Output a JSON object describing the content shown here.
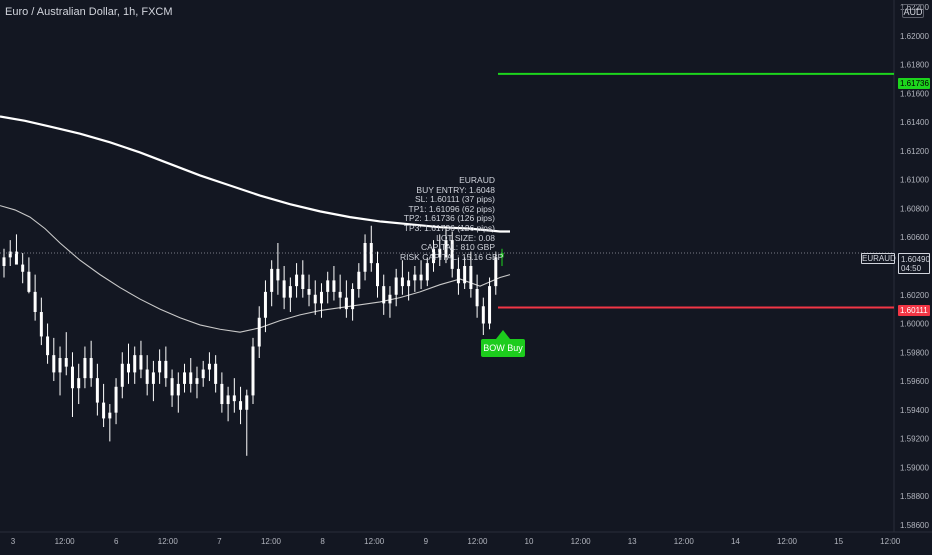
{
  "header": {
    "symbol_title": "Euro / Australian Dollar, 1h, FXCM",
    "currency_label": "AUD"
  },
  "price_axis": {
    "labels": [
      "1.62200",
      "1.62000",
      "1.61800",
      "1.61600",
      "1.61400",
      "1.61200",
      "1.61000",
      "1.60800",
      "1.60600",
      "1.60400",
      "1.60200",
      "1.60000",
      "1.59800",
      "1.59600",
      "1.59400",
      "1.59200",
      "1.59000",
      "1.58800",
      "1.58600"
    ],
    "tp_tag": "1.61736",
    "sl_tag": "1.60111",
    "last_price_tag": "1.60490",
    "countdown_tag": "04:50",
    "symbol_tag": "EURAUD"
  },
  "time_axis": {
    "labels": [
      "3",
      "12:00",
      "6",
      "12:00",
      "7",
      "12:00",
      "8",
      "12:00",
      "9",
      "12:00",
      "10",
      "12:00",
      "13",
      "12:00",
      "14",
      "12:00",
      "15",
      "12:00"
    ]
  },
  "signal": {
    "label": "BOW Buy"
  },
  "info_box": {
    "lines": [
      "EURAUD",
      "BUY ENTRY: 1.6048",
      "SL: 1.60111 (37 pips)",
      "TP1: 1.61096 (62 pips)",
      "TP2: 1.61736 (126 pips)",
      "TP3: 1.61736 (126 pips)",
      "LOT SIZE: 0.08",
      "CAPITAL: 810 GBP",
      "RISK CAPITAL: 15.16 GBP"
    ]
  },
  "colors": {
    "background": "#131722",
    "candle": "#ffffff",
    "tp_line": "#1dd41d",
    "sl_line": "#f23645",
    "signal": "#1dcc1d",
    "grid_text": "#b2b5be"
  },
  "chart_data": {
    "type": "candlestick",
    "symbol": "EURAUD",
    "interval": "1h",
    "ylim": [
      1.5855,
      1.6225
    ],
    "x_ticks": [
      "3",
      "12:00",
      "6",
      "12:00",
      "7",
      "12:00",
      "8",
      "12:00",
      "9",
      "12:00",
      "10",
      "12:00",
      "13",
      "12:00",
      "14",
      "12:00",
      "15",
      "12:00"
    ],
    "levels": {
      "take_profit": 1.61736,
      "stop_loss": 1.60111,
      "last_price": 1.6049
    },
    "candles": [
      [
        1.604,
        1.6052,
        1.6032,
        1.6046
      ],
      [
        1.6046,
        1.6058,
        1.604,
        1.605
      ],
      [
        1.605,
        1.6062,
        1.6044,
        1.6041
      ],
      [
        1.6041,
        1.6049,
        1.6028,
        1.6036
      ],
      [
        1.6036,
        1.6046,
        1.6021,
        1.6022
      ],
      [
        1.6022,
        1.6034,
        1.6002,
        1.6008
      ],
      [
        1.6008,
        1.6018,
        1.5985,
        1.5991
      ],
      [
        1.5991,
        1.6,
        1.5972,
        1.5978
      ],
      [
        1.5978,
        1.599,
        1.596,
        1.5966
      ],
      [
        1.5966,
        1.5984,
        1.595,
        1.5976
      ],
      [
        1.5976,
        1.5994,
        1.5964,
        1.597
      ],
      [
        1.597,
        1.598,
        1.5935,
        1.5955
      ],
      [
        1.5955,
        1.5972,
        1.5944,
        1.5962
      ],
      [
        1.5962,
        1.5984,
        1.5955,
        1.5976
      ],
      [
        1.5976,
        1.5988,
        1.5956,
        1.5962
      ],
      [
        1.5962,
        1.5972,
        1.5936,
        1.5945
      ],
      [
        1.5945,
        1.5958,
        1.5928,
        1.5934
      ],
      [
        1.5934,
        1.5944,
        1.5918,
        1.5938
      ],
      [
        1.5938,
        1.5962,
        1.593,
        1.5956
      ],
      [
        1.5956,
        1.598,
        1.5948,
        1.5972
      ],
      [
        1.5972,
        1.5986,
        1.5958,
        1.5966
      ],
      [
        1.5966,
        1.5984,
        1.5958,
        1.5978
      ],
      [
        1.5978,
        1.5988,
        1.5962,
        1.5968
      ],
      [
        1.5968,
        1.5978,
        1.595,
        1.5958
      ],
      [
        1.5958,
        1.5974,
        1.5946,
        1.5966
      ],
      [
        1.5966,
        1.5982,
        1.5958,
        1.5974
      ],
      [
        1.5974,
        1.5984,
        1.5956,
        1.5962
      ],
      [
        1.5962,
        1.5968,
        1.5942,
        1.595
      ],
      [
        1.595,
        1.5966,
        1.5938,
        1.5958
      ],
      [
        1.5958,
        1.5972,
        1.5952,
        1.5966
      ],
      [
        1.5966,
        1.5976,
        1.5952,
        1.5958
      ],
      [
        1.5958,
        1.597,
        1.5948,
        1.5962
      ],
      [
        1.5962,
        1.5974,
        1.5956,
        1.5968
      ],
      [
        1.5968,
        1.598,
        1.596,
        1.5972
      ],
      [
        1.5972,
        1.5978,
        1.5952,
        1.5958
      ],
      [
        1.5958,
        1.5966,
        1.5938,
        1.5944
      ],
      [
        1.5944,
        1.5956,
        1.5932,
        1.595
      ],
      [
        1.595,
        1.5962,
        1.5938,
        1.5946
      ],
      [
        1.5946,
        1.5956,
        1.593,
        1.594
      ],
      [
        1.594,
        1.5954,
        1.5908,
        1.595
      ],
      [
        1.595,
        1.599,
        1.5944,
        1.5984
      ],
      [
        1.5984,
        1.6012,
        1.5976,
        1.6004
      ],
      [
        1.6004,
        1.603,
        1.5994,
        1.6022
      ],
      [
        1.6022,
        1.6044,
        1.6012,
        1.6038
      ],
      [
        1.6038,
        1.6056,
        1.602,
        1.603
      ],
      [
        1.603,
        1.604,
        1.601,
        1.6018
      ],
      [
        1.6018,
        1.6032,
        1.6008,
        1.6026
      ],
      [
        1.6026,
        1.6042,
        1.6018,
        1.6034
      ],
      [
        1.6034,
        1.6044,
        1.6018,
        1.6024
      ],
      [
        1.6024,
        1.6034,
        1.6012,
        1.602
      ],
      [
        1.602,
        1.603,
        1.6006,
        1.6014
      ],
      [
        1.6014,
        1.6028,
        1.6004,
        1.6022
      ],
      [
        1.6022,
        1.6036,
        1.6014,
        1.603
      ],
      [
        1.603,
        1.604,
        1.6016,
        1.6022
      ],
      [
        1.6022,
        1.6034,
        1.601,
        1.6018
      ],
      [
        1.6018,
        1.603,
        1.6004,
        1.601
      ],
      [
        1.601,
        1.6028,
        1.6002,
        1.6024
      ],
      [
        1.6024,
        1.6042,
        1.6018,
        1.6036
      ],
      [
        1.6036,
        1.6062,
        1.603,
        1.6056
      ],
      [
        1.6056,
        1.6068,
        1.6036,
        1.6042
      ],
      [
        1.6042,
        1.605,
        1.6018,
        1.6026
      ],
      [
        1.6026,
        1.6034,
        1.6006,
        1.6014
      ],
      [
        1.6014,
        1.6026,
        1.6004,
        1.602
      ],
      [
        1.602,
        1.6038,
        1.6012,
        1.6032
      ],
      [
        1.6032,
        1.6044,
        1.602,
        1.6026
      ],
      [
        1.6026,
        1.6036,
        1.6016,
        1.603
      ],
      [
        1.603,
        1.604,
        1.6022,
        1.6034
      ],
      [
        1.6034,
        1.6044,
        1.6024,
        1.603
      ],
      [
        1.603,
        1.6046,
        1.6026,
        1.6042
      ],
      [
        1.6042,
        1.6058,
        1.6036,
        1.6052
      ],
      [
        1.6052,
        1.6062,
        1.604,
        1.6046
      ],
      [
        1.6046,
        1.6066,
        1.6042,
        1.6058
      ],
      [
        1.6058,
        1.6064,
        1.6032,
        1.6038
      ],
      [
        1.6038,
        1.6046,
        1.602,
        1.6028
      ],
      [
        1.6028,
        1.6046,
        1.6024,
        1.604
      ],
      [
        1.604,
        1.605,
        1.6018,
        1.6024
      ],
      [
        1.6024,
        1.6034,
        1.6004,
        1.6012
      ],
      [
        1.6012,
        1.6018,
        1.5992,
        1.6
      ],
      [
        1.6,
        1.6032,
        1.5996,
        1.6026
      ],
      [
        1.6026,
        1.605,
        1.602,
        1.6046
      ],
      [
        1.6046,
        1.6052,
        1.604,
        1.6049
      ]
    ],
    "moving_averages": [
      {
        "color": "#ffffff",
        "width": 2.2,
        "x": [
          0,
          25,
          50,
          80,
          110,
          140,
          170,
          200,
          230,
          260,
          290,
          320,
          350,
          380,
          410,
          440,
          470,
          500,
          510
        ],
        "y": [
          1.6144,
          1.6141,
          1.6137,
          1.6132,
          1.6126,
          1.6119,
          1.6111,
          1.6103,
          1.6096,
          1.6089,
          1.6083,
          1.6078,
          1.6074,
          1.6071,
          1.6069,
          1.6067,
          1.6066,
          1.6064,
          1.6064
        ]
      },
      {
        "color": "#c9c9c9",
        "width": 1.1,
        "x": [
          0,
          15,
          30,
          45,
          60,
          80,
          100,
          120,
          140,
          160,
          180,
          200,
          220,
          240,
          260,
          280,
          300,
          320,
          340,
          360,
          380,
          400,
          420,
          440,
          460,
          480,
          500,
          510
        ],
        "y": [
          1.6082,
          1.6079,
          1.6074,
          1.6066,
          1.6056,
          1.6044,
          1.6034,
          1.6025,
          1.6017,
          1.601,
          1.6004,
          1.5999,
          1.5996,
          1.5994,
          1.5997,
          1.6002,
          1.6006,
          1.6009,
          1.6011,
          1.6013,
          1.6015,
          1.6018,
          1.6022,
          1.6027,
          1.6031,
          1.6026,
          1.6032,
          1.6034
        ]
      }
    ]
  }
}
